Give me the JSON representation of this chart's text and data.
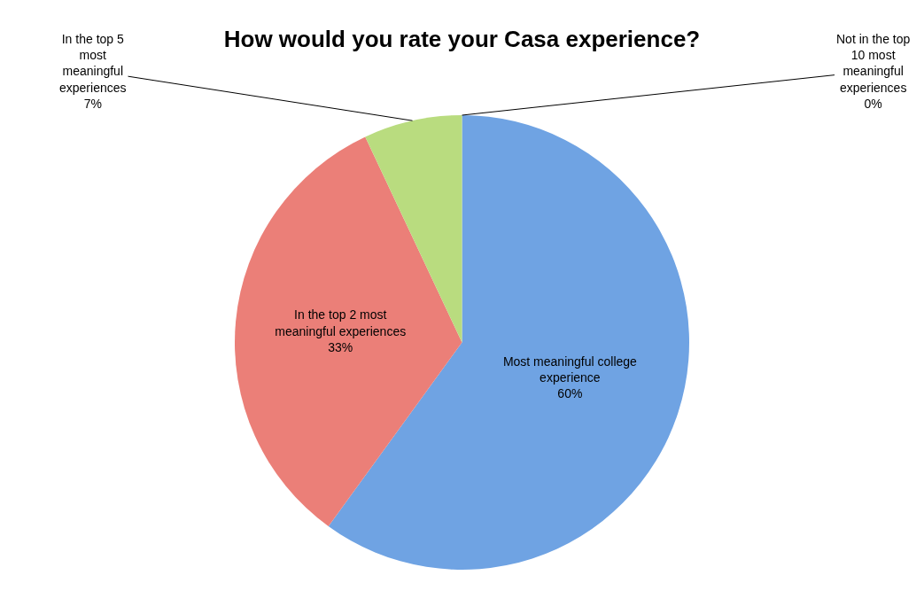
{
  "chart_data": {
    "type": "pie",
    "title": "How would you rate your Casa experience?",
    "categories": [
      "Most meaningful college experience",
      "In the top 2 most meaningful experiences",
      "In the top 5 most meaningful experiences",
      "Not in the top 10 most meaningful experiences"
    ],
    "values": [
      60,
      33,
      7,
      0
    ],
    "value_labels": [
      "60%",
      "33%",
      "7%",
      "0%"
    ],
    "colors": [
      "#6fa3e3",
      "#eb7f78",
      "#b9dc7f",
      "#b19cd9"
    ],
    "legend": false
  }
}
